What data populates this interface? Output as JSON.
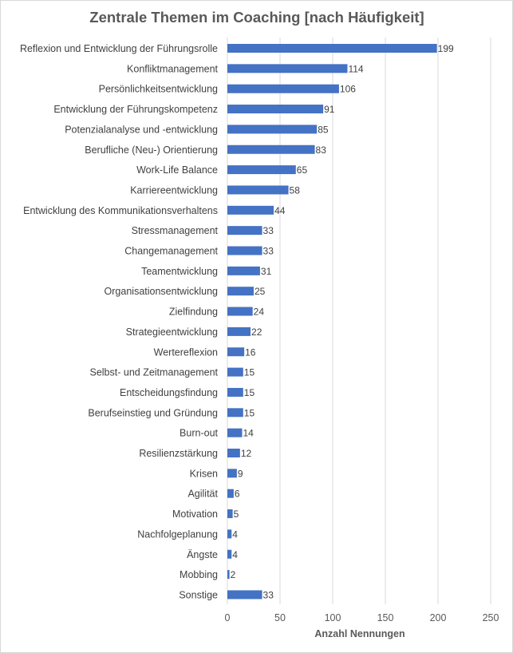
{
  "chart_data": {
    "type": "bar",
    "orientation": "horizontal",
    "title": "Zentrale Themen im Coaching [nach Häufigkeit]",
    "xlabel": "Anzahl Nennungen",
    "ylabel": "",
    "xlim": [
      0,
      250
    ],
    "xticks": [
      0,
      50,
      100,
      150,
      200,
      250
    ],
    "grid": true,
    "legend": "none",
    "bar_color": "#4472C4",
    "categories": [
      "Reflexion und Entwicklung der Führungsrolle",
      "Konfliktmanagement",
      "Persönlichkeitsentwicklung",
      "Entwicklung der Führungskompetenz",
      "Potenzialanalyse und -entwicklung",
      "Berufliche (Neu-) Orientierung",
      "Work-Life Balance",
      "Karriereentwicklung",
      "Entwicklung des Kommunikationsverhaltens",
      "Stressmanagement",
      "Changemanagement",
      "Teamentwicklung",
      "Organisationsentwicklung",
      "Zielfindung",
      "Strategieentwicklung",
      "Wertereflexion",
      "Selbst- und Zeitmanagement",
      "Entscheidungsfindung",
      "Berufseinstieg und Gründung",
      "Burn-out",
      "Resilienzstärkung",
      "Krisen",
      "Agilität",
      "Motivation",
      "Nachfolgeplanung",
      "Ängste",
      "Mobbing",
      "Sonstige"
    ],
    "values": [
      199,
      114,
      106,
      91,
      85,
      83,
      65,
      58,
      44,
      33,
      33,
      31,
      25,
      24,
      22,
      16,
      15,
      15,
      15,
      14,
      12,
      9,
      6,
      5,
      4,
      4,
      2,
      33
    ]
  }
}
